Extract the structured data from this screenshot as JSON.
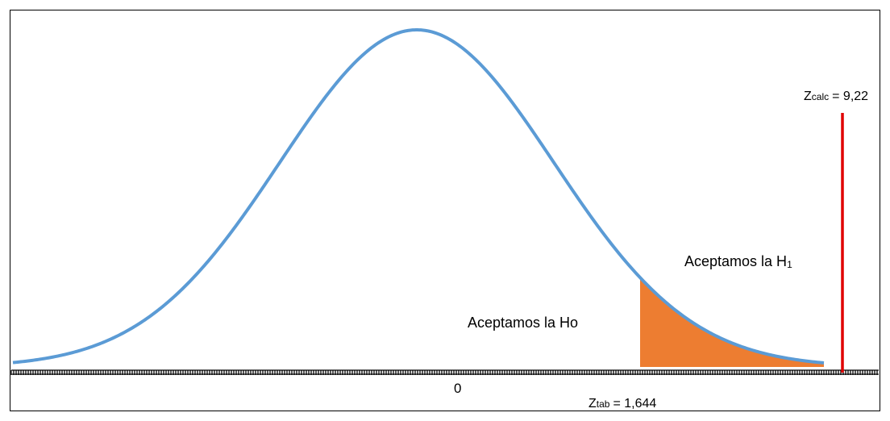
{
  "diagram": {
    "type": "normal-distribution-hypothesis-test",
    "center_label": "0",
    "accept_ho_label": "Aceptamos la Ho",
    "accept_h1_label": "Aceptamos la H",
    "accept_h1_subscript": "1",
    "z_tab": {
      "symbol": "Z",
      "subscript": "tab",
      "equals": "= 1,644",
      "value": 1.644
    },
    "z_calc": {
      "symbol": "Z",
      "subscript": "calc",
      "equals": "= 9,22",
      "value": 9.22
    },
    "colors": {
      "curve": "#5b9bd5",
      "rejection_region": "#ed7d31",
      "z_calc_line": "#e00000",
      "axis": "#000000"
    }
  }
}
